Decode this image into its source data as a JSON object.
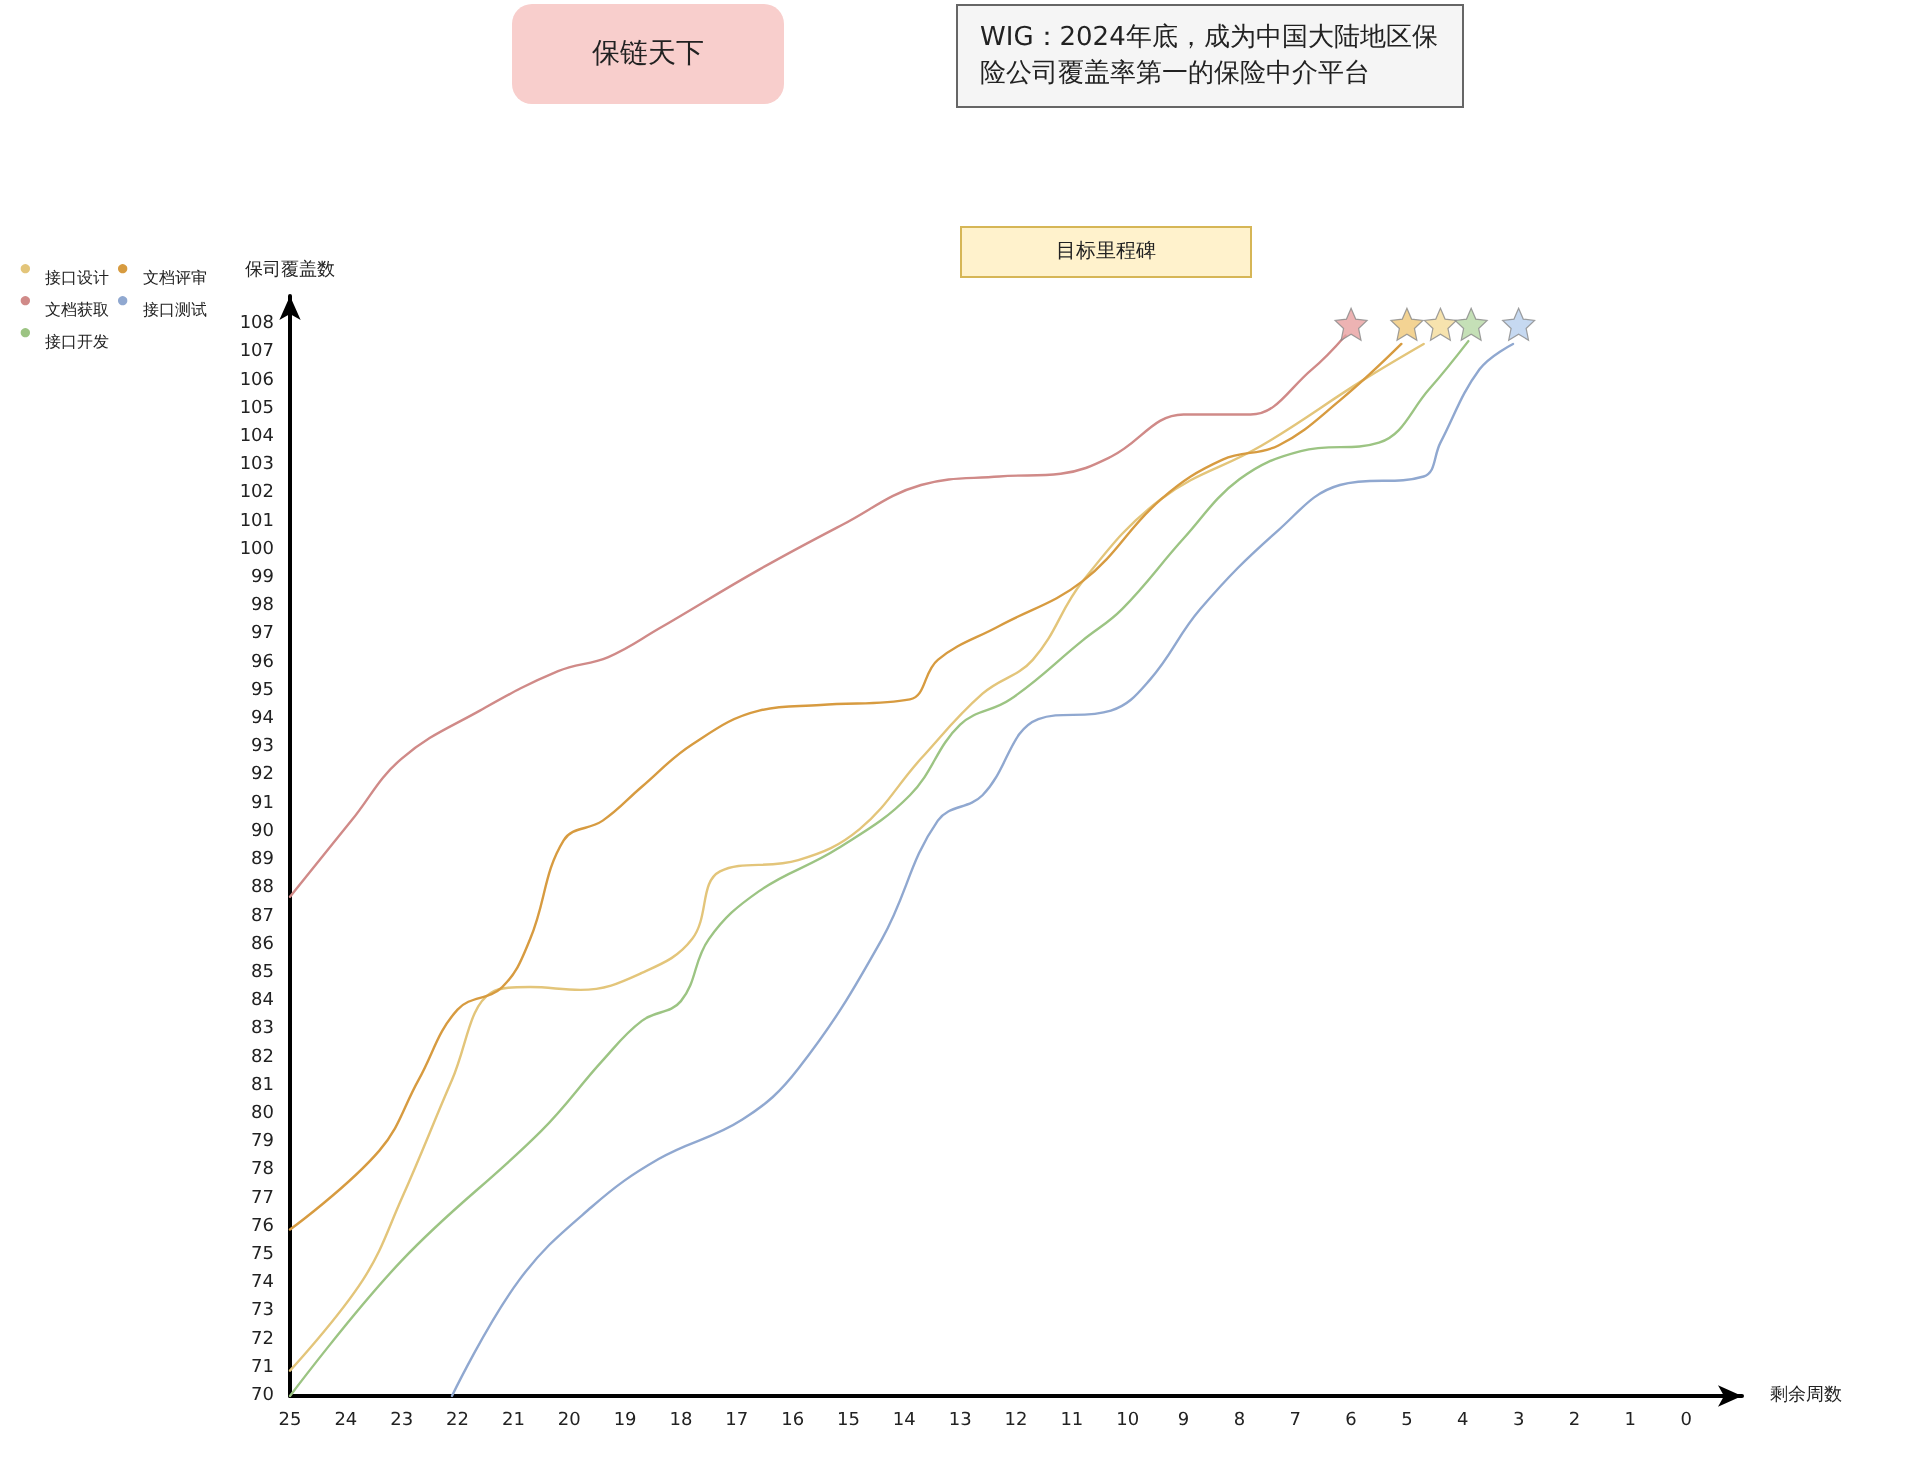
{
  "chart_data": {
    "type": "line",
    "title": "保链天下",
    "subtitle": "WIG：2024年底，成为中国大陆地区保险公司覆盖率第一的保险中介平台",
    "annotations": [
      "目标里程碑"
    ],
    "xlabel": "剩余周数",
    "ylabel": "保司覆盖数",
    "legend": "top left",
    "grid": false,
    "marker": "none",
    "line_style": "solid",
    "xlim": [
      25,
      -1
    ],
    "xticks": [
      25,
      24,
      23,
      22,
      21,
      20,
      19,
      18,
      17,
      16,
      15,
      14,
      13,
      12,
      11,
      10,
      9,
      8,
      7,
      6,
      5,
      4,
      3,
      2,
      1,
      0
    ],
    "ylim": [
      70,
      109
    ],
    "yticks": [
      70,
      71,
      72,
      73,
      74,
      75,
      76,
      77,
      78,
      79,
      80,
      81,
      82,
      83,
      84,
      85,
      86,
      87,
      88,
      89,
      90,
      91,
      92,
      93,
      94,
      95,
      96,
      97,
      98,
      99,
      100,
      101,
      102,
      103,
      104,
      105,
      106,
      107,
      108
    ],
    "series": [
      {
        "name": "接口设计",
        "color": "#e3c57a",
        "x": [
          25,
          23.7,
          23.0,
          22.1,
          21.4,
          20.7,
          19.8,
          18.7,
          17.8,
          17.3,
          15.9,
          14.8,
          13.7,
          12.6,
          11.7,
          10.8,
          9.4,
          7.6,
          5.8,
          4.7
        ],
        "values": [
          70.9,
          74.1,
          77.0,
          81.2,
          84.3,
          84.5,
          84.4,
          85.0,
          86.2,
          88.6,
          89.0,
          90.1,
          92.6,
          94.9,
          96.1,
          98.9,
          101.8,
          103.7,
          106.0,
          107.3
        ]
      },
      {
        "name": "文档评审",
        "color": "#d79b40",
        "x": [
          25,
          23.4,
          22.7,
          22.0,
          21.2,
          20.7,
          20.1,
          19.4,
          18.7,
          17.8,
          16.6,
          15.5,
          13.9,
          13.4,
          12.3,
          10.8,
          9.4,
          8.3,
          7.3,
          6.2,
          5.1
        ],
        "values": [
          75.9,
          78.7,
          81.2,
          83.7,
          84.5,
          86.2,
          89.7,
          90.4,
          91.6,
          93.1,
          94.3,
          94.5,
          94.7,
          96.1,
          97.3,
          98.9,
          101.8,
          103.2,
          103.7,
          105.3,
          107.3
        ]
      },
      {
        "name": "文档获取",
        "color": "#d08a88",
        "x": [
          25,
          23.9,
          23.0,
          21.6,
          20.2,
          19.3,
          18.4,
          16.6,
          15.1,
          13.7,
          12.3,
          11.2,
          10.3,
          9.0,
          8.3,
          7.8,
          6.7,
          6.1
        ],
        "values": [
          87.7,
          90.4,
          92.6,
          94.3,
          95.7,
          96.2,
          97.2,
          99.3,
          100.9,
          102.3,
          102.6,
          102.7,
          103.3,
          104.8,
          104.8,
          104.8,
          106.4,
          107.6
        ]
      },
      {
        "name": "接口测试",
        "color": "#90a8d0",
        "x": [
          22.1,
          20.9,
          19.6,
          18.4,
          16.9,
          15.9,
          14.4,
          13.4,
          12.6,
          11.6,
          10.3,
          9.6,
          8.7,
          7.3,
          6.2,
          4.7,
          4.4,
          3.7,
          3.1
        ],
        "values": [
          70,
          74.1,
          76.7,
          78.4,
          79.8,
          81.6,
          86.2,
          90.4,
          91.3,
          94.0,
          94.3,
          95.4,
          97.9,
          100.7,
          102.3,
          102.6,
          103.8,
          106.4,
          107.3
        ]
      },
      {
        "name": "接口开发",
        "color": "#9cc483",
        "x": [
          25,
          23.0,
          20.5,
          19.4,
          18.7,
          18.0,
          17.5,
          16.6,
          15.2,
          13.9,
          13.0,
          12.1,
          10.8,
          10.1,
          9.0,
          8.0,
          6.9,
          5.5,
          4.6,
          3.9
        ],
        "values": [
          70,
          74.8,
          79.4,
          81.9,
          83.3,
          84.0,
          86.2,
          87.9,
          89.4,
          91.3,
          93.8,
          94.7,
          96.8,
          97.9,
          100.4,
          102.5,
          103.5,
          103.8,
          105.7,
          107.4
        ]
      },
      {
        "type": "scatter",
        "marker": "star",
        "color": "#e8a0a0",
        "x": [
          6
        ],
        "values": [
          108
        ]
      },
      {
        "type": "scatter",
        "marker": "star",
        "color": "#f0c878",
        "x": [
          5
        ],
        "values": [
          108
        ]
      },
      {
        "type": "scatter",
        "marker": "star",
        "color": "#f5dc9a",
        "x": [
          4.4
        ],
        "values": [
          108
        ]
      },
      {
        "type": "scatter",
        "marker": "star",
        "color": "#b7d8a5",
        "x": [
          3.85
        ],
        "values": [
          108
        ]
      },
      {
        "type": "scatter",
        "marker": "star",
        "color": "#b8cfee",
        "x": [
          3
        ],
        "values": [
          108
        ]
      }
    ]
  }
}
